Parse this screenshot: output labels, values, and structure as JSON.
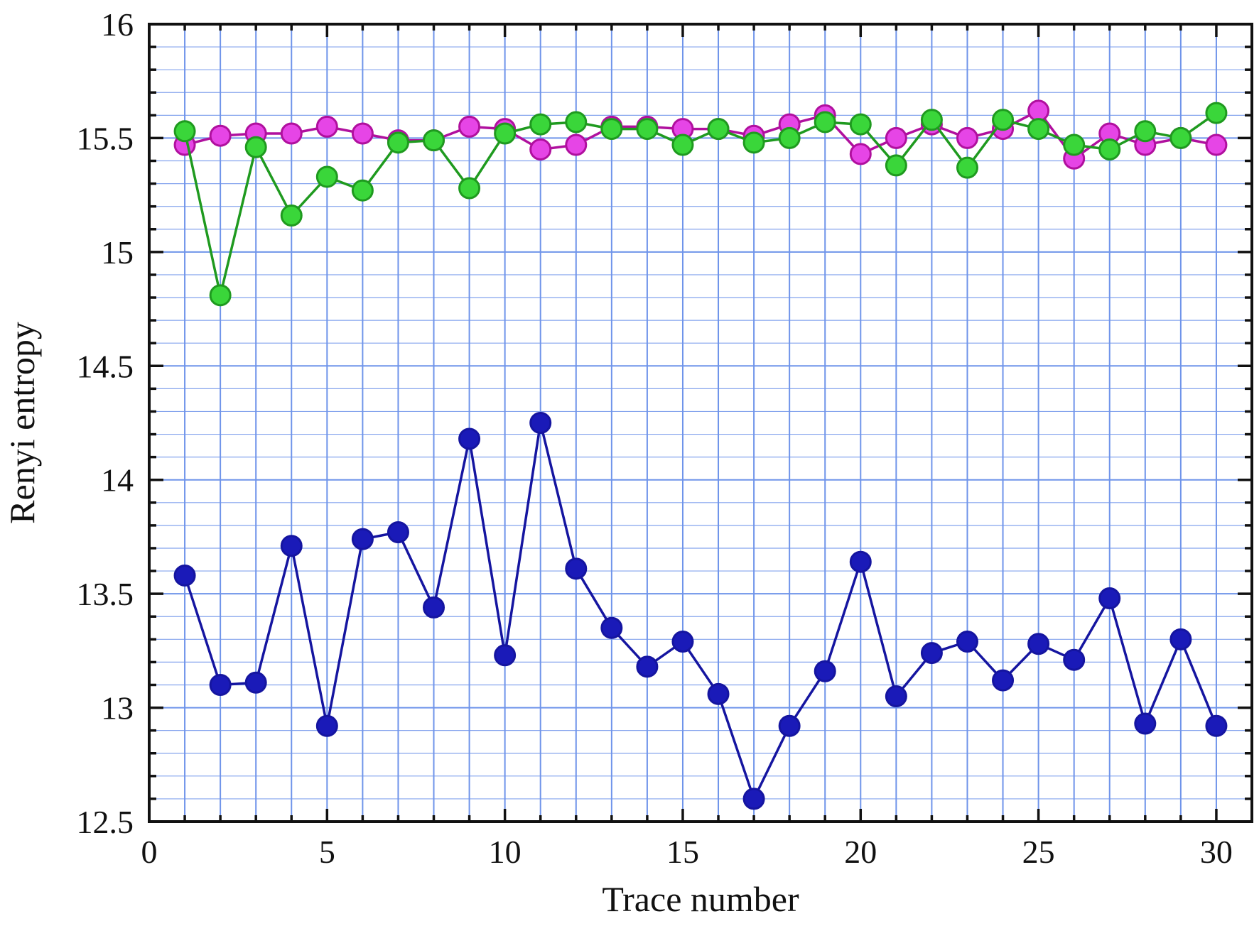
{
  "chart_data": {
    "type": "line",
    "title": "",
    "xlabel": "Trace number",
    "ylabel": "Renyi entropy",
    "xlim": [
      0,
      31
    ],
    "ylim": [
      12.5,
      16
    ],
    "grid": true,
    "x_ticks": [
      0,
      5,
      10,
      15,
      20,
      25,
      30
    ],
    "x_tick_labels": [
      "0",
      "5",
      "10",
      "15",
      "20",
      "25",
      "30"
    ],
    "y_ticks": [
      12.5,
      13,
      13.5,
      14,
      14.5,
      15,
      15.5,
      16
    ],
    "y_tick_labels": [
      "12.5",
      "13",
      "13.5",
      "14",
      "14.5",
      "15",
      "15.5",
      "16"
    ],
    "colors": {
      "grid": "#6f94ea",
      "axis": "#111111"
    },
    "x": [
      1,
      2,
      3,
      4,
      5,
      6,
      7,
      8,
      9,
      10,
      11,
      12,
      13,
      14,
      15,
      16,
      17,
      18,
      19,
      20,
      21,
      22,
      23,
      24,
      25,
      26,
      27,
      28,
      29,
      30
    ],
    "series": [
      {
        "color": "#1a1ab8",
        "line_color": "#1515a0",
        "values": [
          13.58,
          13.1,
          13.11,
          13.71,
          12.92,
          13.74,
          13.77,
          13.44,
          14.18,
          13.23,
          14.25,
          13.61,
          13.35,
          13.18,
          13.29,
          13.06,
          12.6,
          12.92,
          13.16,
          13.64,
          13.05,
          13.24,
          13.29,
          13.12,
          13.28,
          13.21,
          13.48,
          12.93,
          13.3,
          12.92
        ]
      },
      {
        "color": "#e645e6",
        "line_color": "#b0109e",
        "values": [
          15.47,
          15.51,
          15.52,
          15.52,
          15.55,
          15.52,
          15.49,
          15.49,
          15.55,
          15.54,
          15.45,
          15.47,
          15.55,
          15.55,
          15.54,
          15.54,
          15.51,
          15.56,
          15.6,
          15.43,
          15.5,
          15.56,
          15.5,
          15.54,
          15.62,
          15.41,
          15.52,
          15.47,
          15.5,
          15.47
        ]
      },
      {
        "color": "#3ad63a",
        "line_color": "#1f9a1f",
        "values": [
          15.53,
          14.81,
          15.46,
          15.16,
          15.33,
          15.27,
          15.48,
          15.49,
          15.28,
          15.52,
          15.56,
          15.57,
          15.54,
          15.54,
          15.47,
          15.54,
          15.48,
          15.5,
          15.57,
          15.56,
          15.38,
          15.58,
          15.37,
          15.58,
          15.54,
          15.47,
          15.45,
          15.53,
          15.5,
          15.61
        ]
      }
    ]
  }
}
